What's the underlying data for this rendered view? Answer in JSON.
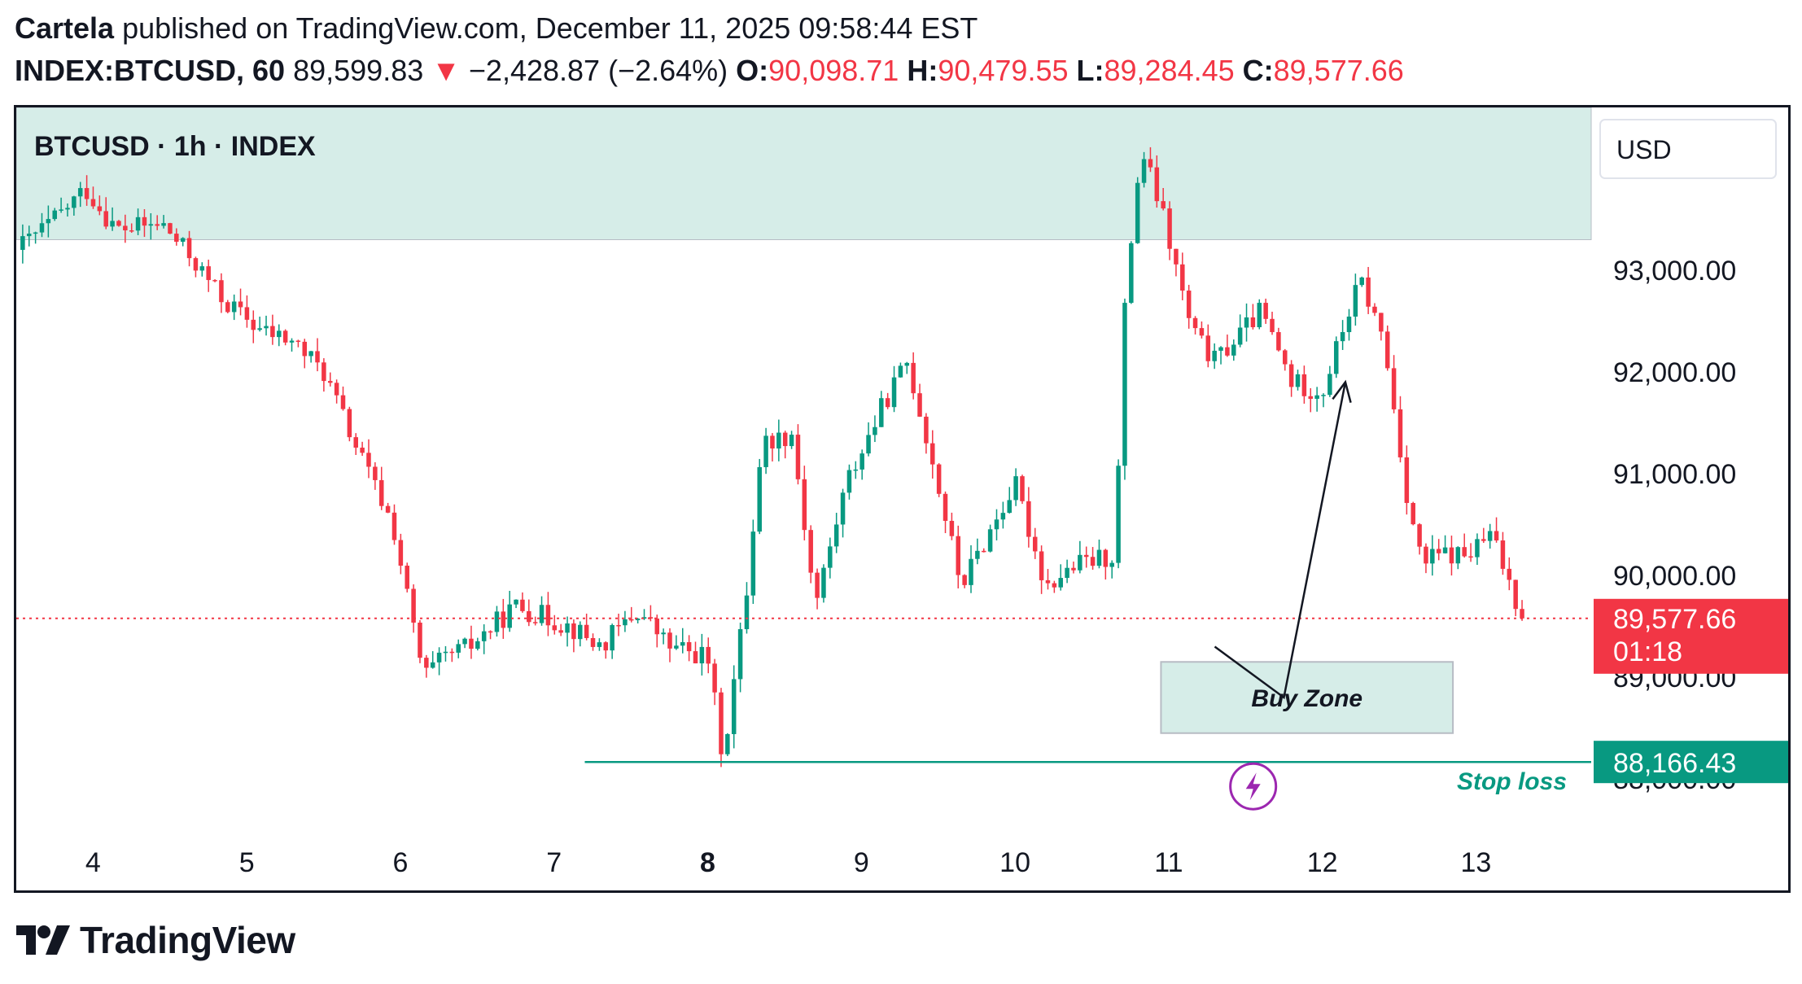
{
  "header": {
    "author": "Cartela",
    "published": "published on TradingView.com, December 11, 2025 09:58:44 EST",
    "symbol": "INDEX:BTCUSD, 60",
    "last": "89,599.83",
    "change": "−2,428.87 (−2.64%)",
    "o_label": "O:",
    "o_value": "90,098.71",
    "h_label": "H:",
    "h_value": "90,479.55",
    "l_label": "L:",
    "l_value": "89,284.45",
    "c_label": "C:",
    "c_value": "89,577.66"
  },
  "footer": {
    "brand": "TradingView"
  },
  "colors": {
    "up": "#089981",
    "down": "#f23645",
    "zone_fill": "#d6ede8",
    "zone_stroke": "#b7bcc4",
    "stoploss": "#089981",
    "lightning": "#9c27b0"
  },
  "chart_data": {
    "type": "candlestick",
    "title": "BTCUSD · 1h · INDEX",
    "currency": "USD",
    "y_ticks": [
      "93,000.00",
      "92,000.00",
      "91,000.00",
      "90,000.00",
      "89,000.00",
      "88,000.00"
    ],
    "y_tick_values": [
      93000,
      92000,
      91000,
      90000,
      89000,
      88000
    ],
    "ylim": [
      87400,
      94600
    ],
    "x_ticks": [
      "4",
      "5",
      "6",
      "7",
      "8",
      "9",
      "10",
      "11",
      "12",
      "13"
    ],
    "x_bold": "8",
    "xlim": [
      3.5,
      13.75
    ],
    "current_price": {
      "value": 89577.66,
      "label": "89,577.66",
      "countdown": "01:18"
    },
    "stop_loss": {
      "value": 88166.43,
      "label": "88,166.43",
      "text": "Stop loss",
      "from_day": 7.2
    },
    "supply_zone": {
      "y_low": 93300,
      "y_high": 94600
    },
    "buy_zone": {
      "label": "Buy Zone",
      "x0": 10.95,
      "x1": 12.85,
      "y_low": 88450,
      "y_high": 89150
    },
    "projection": [
      [
        11.3,
        89300
      ],
      [
        11.75,
        88800
      ],
      [
        12.15,
        91900
      ]
    ],
    "keypoints": [
      [
        3.5,
        93200
      ],
      [
        3.75,
        93500
      ],
      [
        3.95,
        93800
      ],
      [
        4.15,
        93400
      ],
      [
        4.45,
        93450
      ],
      [
        4.65,
        93100
      ],
      [
        4.85,
        92700
      ],
      [
        5.1,
        92400
      ],
      [
        5.3,
        92300
      ],
      [
        5.5,
        92000
      ],
      [
        5.7,
        91300
      ],
      [
        5.95,
        90500
      ],
      [
        6.15,
        89000
      ],
      [
        6.3,
        89200
      ],
      [
        6.45,
        89300
      ],
      [
        6.75,
        89700
      ],
      [
        7.1,
        89500
      ],
      [
        7.3,
        89300
      ],
      [
        7.55,
        89650
      ],
      [
        7.75,
        89300
      ],
      [
        8.0,
        89200
      ],
      [
        8.1,
        88200
      ],
      [
        8.25,
        89800
      ],
      [
        8.35,
        91300
      ],
      [
        8.55,
        91400
      ],
      [
        8.7,
        89700
      ],
      [
        8.9,
        90900
      ],
      [
        9.15,
        91700
      ],
      [
        9.3,
        92100
      ],
      [
        9.45,
        91200
      ],
      [
        9.65,
        89900
      ],
      [
        10.0,
        90900
      ],
      [
        10.2,
        89900
      ],
      [
        10.4,
        90100
      ],
      [
        10.65,
        90200
      ],
      [
        10.72,
        92800
      ],
      [
        10.82,
        94200
      ],
      [
        10.95,
        93600
      ],
      [
        11.15,
        92400
      ],
      [
        11.3,
        92100
      ],
      [
        11.6,
        92600
      ],
      [
        11.8,
        91900
      ],
      [
        12.0,
        91800
      ],
      [
        12.15,
        92500
      ],
      [
        12.25,
        92900
      ],
      [
        12.4,
        92300
      ],
      [
        12.55,
        90800
      ],
      [
        12.65,
        90100
      ],
      [
        12.75,
        90200
      ],
      [
        12.95,
        90200
      ],
      [
        13.1,
        90400
      ],
      [
        13.2,
        90000
      ],
      [
        13.3,
        89600
      ]
    ]
  }
}
